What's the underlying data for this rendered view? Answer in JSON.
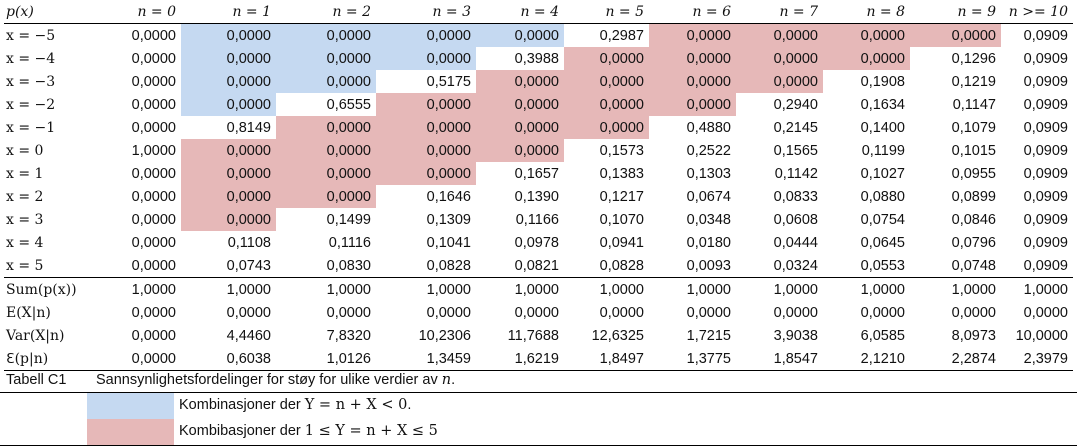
{
  "table": {
    "corner": "p(x)",
    "headers": [
      "n = 0",
      "n = 1",
      "n = 2",
      "n = 3",
      "n = 4",
      "n = 5",
      "n = 6",
      "n = 7",
      "n = 8",
      "n = 9",
      "n >= 10"
    ],
    "rows": [
      {
        "label": "x = −5",
        "values": [
          "0,0000",
          "0,0000",
          "0,0000",
          "0,0000",
          "0,0000",
          "0,2987",
          "0,0000",
          "0,0000",
          "0,0000",
          "0,0000",
          "0,0909"
        ],
        "shade": [
          "",
          "blue",
          "blue",
          "blue",
          "blue",
          "",
          "pink",
          "pink",
          "pink",
          "pink",
          ""
        ]
      },
      {
        "label": "x = −4",
        "values": [
          "0,0000",
          "0,0000",
          "0,0000",
          "0,0000",
          "0,3988",
          "0,0000",
          "0,0000",
          "0,0000",
          "0,0000",
          "0,1296",
          "0,0909"
        ],
        "shade": [
          "",
          "blue",
          "blue",
          "blue",
          "",
          "pink",
          "pink",
          "pink",
          "pink",
          "",
          ""
        ]
      },
      {
        "label": "x = −3",
        "values": [
          "0,0000",
          "0,0000",
          "0,0000",
          "0,5175",
          "0,0000",
          "0,0000",
          "0,0000",
          "0,0000",
          "0,1908",
          "0,1219",
          "0,0909"
        ],
        "shade": [
          "",
          "blue",
          "blue",
          "",
          "pink",
          "pink",
          "pink",
          "pink",
          "",
          "",
          ""
        ]
      },
      {
        "label": "x = −2",
        "values": [
          "0,0000",
          "0,0000",
          "0,6555",
          "0,0000",
          "0,0000",
          "0,0000",
          "0,0000",
          "0,2940",
          "0,1634",
          "0,1147",
          "0,0909"
        ],
        "shade": [
          "",
          "blue",
          "",
          "pink",
          "pink",
          "pink",
          "pink",
          "",
          "",
          "",
          ""
        ]
      },
      {
        "label": "x = −1",
        "values": [
          "0,0000",
          "0,8149",
          "0,0000",
          "0,0000",
          "0,0000",
          "0,0000",
          "0,4880",
          "0,2145",
          "0,1400",
          "0,1079",
          "0,0909"
        ],
        "shade": [
          "",
          "",
          "pink",
          "pink",
          "pink",
          "pink",
          "",
          "",
          "",
          "",
          ""
        ]
      },
      {
        "label": "x = 0",
        "values": [
          "1,0000",
          "0,0000",
          "0,0000",
          "0,0000",
          "0,0000",
          "0,1573",
          "0,2522",
          "0,1565",
          "0,1199",
          "0,1015",
          "0,0909"
        ],
        "shade": [
          "",
          "pink",
          "pink",
          "pink",
          "pink",
          "",
          "",
          "",
          "",
          "",
          ""
        ]
      },
      {
        "label": "x = 1",
        "values": [
          "0,0000",
          "0,0000",
          "0,0000",
          "0,0000",
          "0,1657",
          "0,1383",
          "0,1303",
          "0,1142",
          "0,1027",
          "0,0955",
          "0,0909"
        ],
        "shade": [
          "",
          "pink",
          "pink",
          "pink",
          "",
          "",
          "",
          "",
          "",
          "",
          ""
        ]
      },
      {
        "label": "x = 2",
        "values": [
          "0,0000",
          "0,0000",
          "0,0000",
          "0,1646",
          "0,1390",
          "0,1217",
          "0,0674",
          "0,0833",
          "0,0880",
          "0,0899",
          "0,0909"
        ],
        "shade": [
          "",
          "pink",
          "pink",
          "",
          "",
          "",
          "",
          "",
          "",
          "",
          ""
        ]
      },
      {
        "label": "x = 3",
        "values": [
          "0,0000",
          "0,0000",
          "0,1499",
          "0,1309",
          "0,1166",
          "0,1070",
          "0,0348",
          "0,0608",
          "0,0754",
          "0,0846",
          "0,0909"
        ],
        "shade": [
          "",
          "pink",
          "",
          "",
          "",
          "",
          "",
          "",
          "",
          "",
          ""
        ]
      },
      {
        "label": "x = 4",
        "values": [
          "0,0000",
          "0,1108",
          "0,1116",
          "0,1041",
          "0,0978",
          "0,0941",
          "0,0180",
          "0,0444",
          "0,0645",
          "0,0796",
          "0,0909"
        ],
        "shade": [
          "",
          "",
          "",
          "",
          "",
          "",
          "",
          "",
          "",
          "",
          ""
        ]
      },
      {
        "label": "x = 5",
        "values": [
          "0,0000",
          "0,0743",
          "0,0830",
          "0,0828",
          "0,0821",
          "0,0828",
          "0,0093",
          "0,0324",
          "0,0553",
          "0,0748",
          "0,0909"
        ],
        "shade": [
          "",
          "",
          "",
          "",
          "",
          "",
          "",
          "",
          "",
          "",
          ""
        ]
      }
    ],
    "summary": [
      {
        "label": "Sum(p(x))",
        "values": [
          "1,0000",
          "1,0000",
          "1,0000",
          "1,0000",
          "1,0000",
          "1,0000",
          "1,0000",
          "1,0000",
          "1,0000",
          "1,0000",
          "1,0000"
        ]
      },
      {
        "label": "E(X|n)",
        "values": [
          "0,0000",
          "0,0000",
          "0,0000",
          "0,0000",
          "0,0000",
          "0,0000",
          "0,0000",
          "0,0000",
          "0,0000",
          "0,0000",
          "0,0000"
        ]
      },
      {
        "label": "Var(X|n)",
        "values": [
          "0,0000",
          "4,4460",
          "7,8320",
          "10,2306",
          "11,7688",
          "12,6325",
          "1,7215",
          "3,9038",
          "6,0585",
          "8,0973",
          "10,0000"
        ]
      },
      {
        "label": "ℇ(p|n)",
        "values": [
          "0,0000",
          "0,6038",
          "1,0126",
          "1,3459",
          "1,6219",
          "1,8497",
          "1,3775",
          "1,8547",
          "2,1210",
          "2,2874",
          "2,3979"
        ]
      }
    ]
  },
  "caption": {
    "label": "Tabell C1",
    "text_before": "Sannsynlighetsfordelinger for støy for ulike verdier av ",
    "text_var": "n",
    "text_after": "."
  },
  "legend": [
    {
      "swatch": "blue",
      "text": "Kombinasjoner der ",
      "math": "Y = n + X < 0",
      "after": "."
    },
    {
      "swatch": "pink",
      "text": "Kombibasjoner der ",
      "math": "1 ≤ Y = n + X ≤ 5",
      "after": ""
    }
  ],
  "colors": {
    "blue": "#c5d9f1",
    "pink": "#e6b8b8"
  }
}
